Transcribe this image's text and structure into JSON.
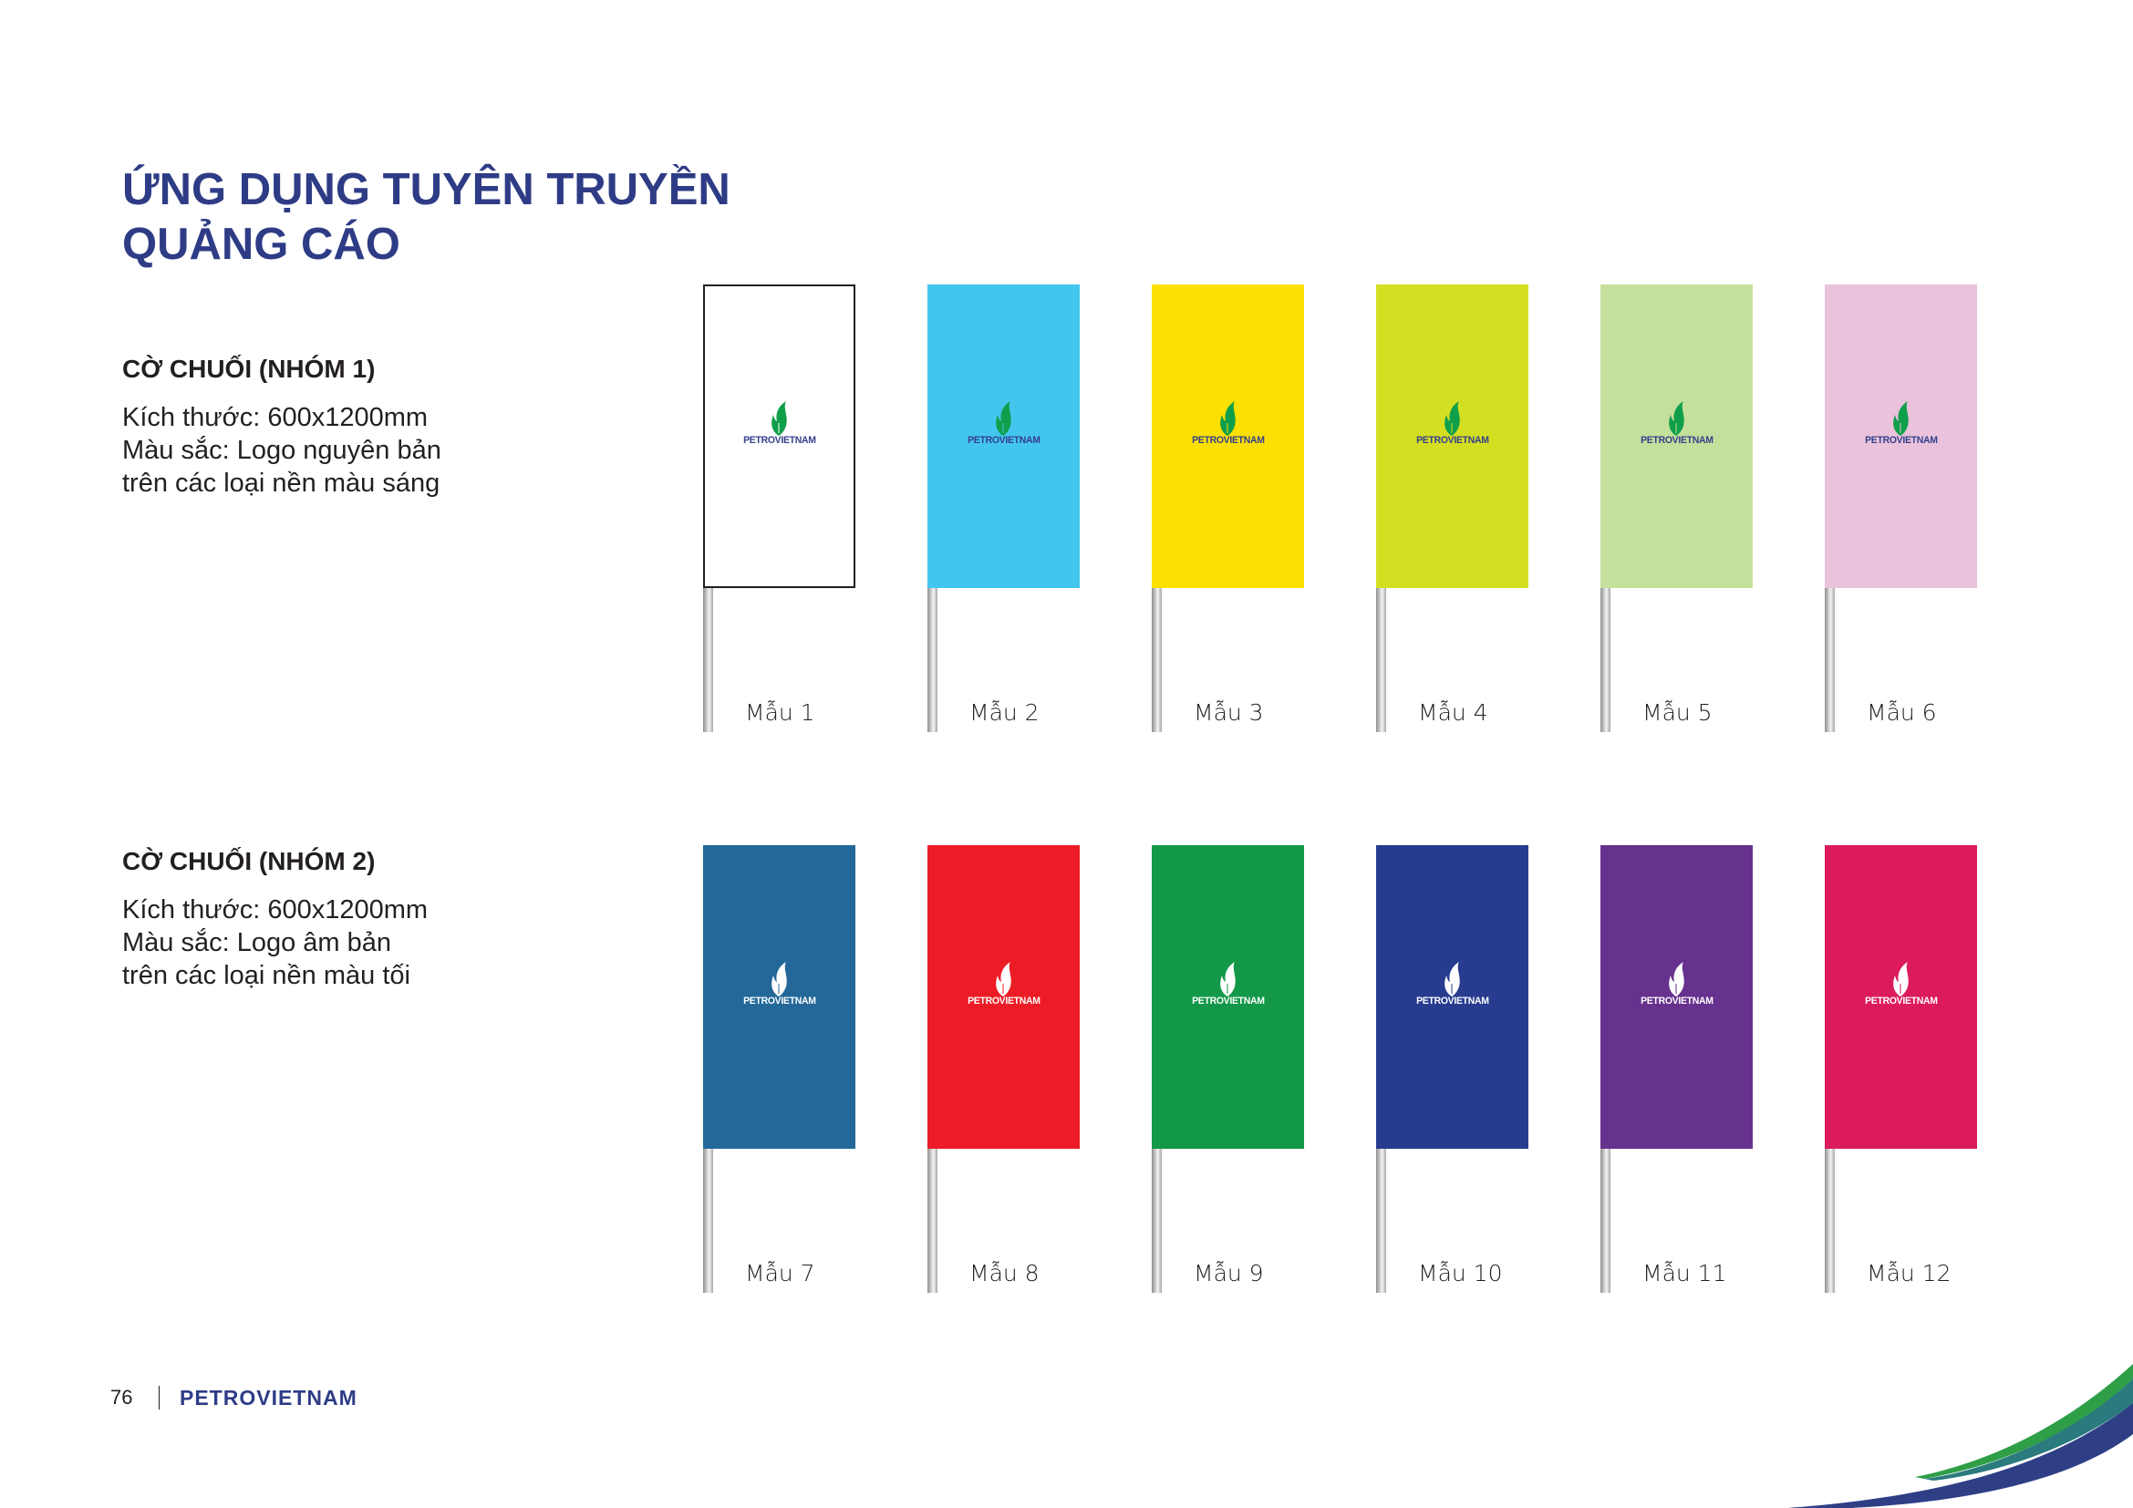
{
  "page": {
    "title_line1": "ỨNG DỤNG TUYÊN TRUYỀN",
    "title_line2": "QUẢNG CÁO",
    "title_color": "#2e3c86"
  },
  "groups": [
    {
      "heading": "CỜ CHUỐI (NHÓM 1)",
      "size": "Kích thước: 600x1200mm",
      "color_line1": "Màu sắc: Logo nguyên bản",
      "color_line2": "trên các loại nền màu sáng",
      "logo_variant": "original",
      "flags": [
        {
          "label": "Mẫu 1",
          "color": "#ffffff",
          "outlined": true
        },
        {
          "label": "Mẫu 2",
          "color": "#43c6ee"
        },
        {
          "label": "Mẫu 3",
          "color": "#fbe003"
        },
        {
          "label": "Mẫu 4",
          "color": "#d5df22"
        },
        {
          "label": "Mẫu 5",
          "color": "#c5df9c"
        },
        {
          "label": "Mẫu 6",
          "color": "#eac2dc"
        }
      ]
    },
    {
      "heading": "CỜ CHUỐI (NHÓM 2)",
      "size": "Kích thước: 600x1200mm",
      "color_line1": "Màu sắc: Logo âm bản",
      "color_line2": "trên các loại nền màu tối",
      "logo_variant": "negative",
      "flags": [
        {
          "label": "Mẫu 7",
          "color": "#236899"
        },
        {
          "label": "Mẫu 8",
          "color": "#ec1c26"
        },
        {
          "label": "Mẫu 9",
          "color": "#129848"
        },
        {
          "label": "Mẫu 10",
          "color": "#283c8f"
        },
        {
          "label": "Mẫu 11",
          "color": "#67318e"
        },
        {
          "label": "Mẫu 12",
          "color": "#dc1b5d"
        }
      ]
    }
  ],
  "logo": {
    "text": "PETROVIETNAM",
    "flame_color": "#0f9f4a",
    "text_color": "#34408c",
    "negative_color": "#ffffff",
    "icon": "flame-icon"
  },
  "footer": {
    "page_number": "76",
    "brand": "PETROVIETNAM"
  },
  "swoosh_colors": [
    "#2e9e47",
    "#2a7d7c",
    "#2e3f86"
  ]
}
